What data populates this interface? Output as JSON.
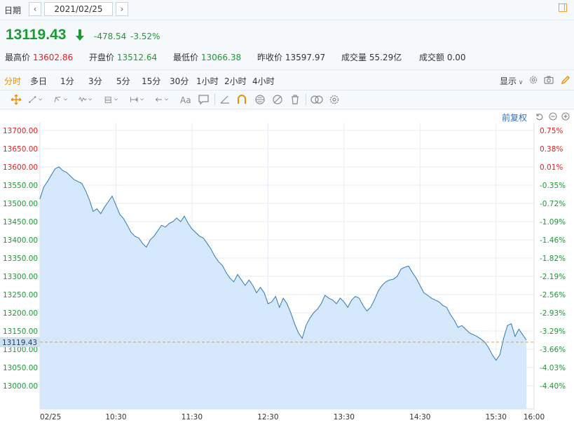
{
  "header": {
    "date_label": "日期",
    "prev_label": "‹",
    "next_label": "›",
    "date_value": "2021/02/25"
  },
  "quote": {
    "last": "13119.43",
    "change": "-478.54",
    "change_pct": "-3.52%",
    "stats": [
      {
        "label": "最高价",
        "value": "13602.86",
        "color": "red"
      },
      {
        "label": "开盘价",
        "value": "13512.64",
        "color": "green"
      },
      {
        "label": "最低价",
        "value": "13066.38",
        "color": "green"
      },
      {
        "label": "昨收价",
        "value": "13597.97",
        "color": "plain"
      },
      {
        "label": "成交量",
        "value": "55.29亿",
        "color": "plain"
      },
      {
        "label": "成交额",
        "value": "0.00",
        "color": "plain"
      }
    ]
  },
  "periods": [
    "分时",
    "多日",
    "1分",
    "3分",
    "5分",
    "15分",
    "30分",
    "1小时",
    "2小时",
    "4小时"
  ],
  "active_period": "分时",
  "display_label": "显示",
  "adjust_label": "前复权",
  "toolbar_icons": [
    "move-icon",
    "line-tool-icon",
    "polyline-tool-icon",
    "wave-tool-icon",
    "fib-tool-icon",
    "range-tool-icon",
    "arrow-tool-icon",
    "text-tool-icon",
    "note-tool-icon",
    "angle-tool-icon",
    "magnet-icon",
    "lock-icon",
    "hide-icon",
    "trash-icon",
    "compare-icon",
    "settings-icon"
  ],
  "colors": {
    "up": "#e02020",
    "down": "#1a9b33",
    "line": "#2f78b6",
    "fill": "#cfe4fb",
    "accent": "#f08c00",
    "current": "#f0a030"
  },
  "chart_data": {
    "type": "area",
    "prev_close": 13597.97,
    "current_price": 13119.43,
    "current_price_label": "13119.43",
    "ylim": [
      12950,
      13700
    ],
    "yticks": [
      {
        "v": 13700,
        "label": "13700.00",
        "pct": "0.75%"
      },
      {
        "v": 13650,
        "label": "13650.00",
        "pct": "0.38%"
      },
      {
        "v": 13600,
        "label": "13600.00",
        "pct": "0.01%"
      },
      {
        "v": 13550,
        "label": "13550.00",
        "pct": "-0.35%"
      },
      {
        "v": 13500,
        "label": "13500.00",
        "pct": "-0.72%"
      },
      {
        "v": 13450,
        "label": "13450.00",
        "pct": "-1.09%"
      },
      {
        "v": 13400,
        "label": "13400.00",
        "pct": "-1.46%"
      },
      {
        "v": 13350,
        "label": "13350.00",
        "pct": "-1.82%"
      },
      {
        "v": 13300,
        "label": "13300.00",
        "pct": "-2.19%"
      },
      {
        "v": 13250,
        "label": "13250.00",
        "pct": "-2.56%"
      },
      {
        "v": 13200,
        "label": "13200.00",
        "pct": "-2.93%"
      },
      {
        "v": 13150,
        "label": "13150.00",
        "pct": "-3.29%"
      },
      {
        "v": 13100,
        "label": "13100.00",
        "pct": "-3.66%"
      },
      {
        "v": 13050,
        "label": "13050.00",
        "pct": "-4.03%"
      },
      {
        "v": 13000,
        "label": "13000.00",
        "pct": "-4.40%"
      }
    ],
    "xticks": [
      {
        "t": "09:30",
        "label": "02/25"
      },
      {
        "t": "10:30",
        "label": "10:30"
      },
      {
        "t": "11:30",
        "label": "11:30"
      },
      {
        "t": "12:30",
        "label": "12:30"
      },
      {
        "t": "13:30",
        "label": "13:30"
      },
      {
        "t": "14:30",
        "label": "14:30"
      },
      {
        "t": "15:30",
        "label": "15:30"
      },
      {
        "t": "16:00",
        "label": "16:00"
      }
    ],
    "xrange": [
      "09:30",
      "16:00"
    ],
    "series": [
      {
        "points": [
          [
            "09:30",
            13512
          ],
          [
            "09:33",
            13545
          ],
          [
            "09:36",
            13560
          ],
          [
            "09:39",
            13578
          ],
          [
            "09:42",
            13595
          ],
          [
            "09:45",
            13600
          ],
          [
            "09:48",
            13590
          ],
          [
            "09:51",
            13585
          ],
          [
            "09:54",
            13575
          ],
          [
            "09:57",
            13565
          ],
          [
            "10:00",
            13560
          ],
          [
            "10:03",
            13555
          ],
          [
            "10:06",
            13535
          ],
          [
            "10:09",
            13510
          ],
          [
            "10:12",
            13478
          ],
          [
            "10:15",
            13485
          ],
          [
            "10:18",
            13472
          ],
          [
            "10:21",
            13490
          ],
          [
            "10:24",
            13505
          ],
          [
            "10:27",
            13520
          ],
          [
            "10:30",
            13495
          ],
          [
            "10:33",
            13470
          ],
          [
            "10:36",
            13458
          ],
          [
            "10:39",
            13440
          ],
          [
            "10:42",
            13420
          ],
          [
            "10:45",
            13410
          ],
          [
            "10:48",
            13405
          ],
          [
            "10:51",
            13390
          ],
          [
            "10:54",
            13380
          ],
          [
            "10:57",
            13400
          ],
          [
            "11:00",
            13410
          ],
          [
            "11:03",
            13425
          ],
          [
            "11:06",
            13440
          ],
          [
            "11:09",
            13435
          ],
          [
            "11:12",
            13445
          ],
          [
            "11:15",
            13450
          ],
          [
            "11:18",
            13460
          ],
          [
            "11:21",
            13450
          ],
          [
            "11:24",
            13465
          ],
          [
            "11:27",
            13445
          ],
          [
            "11:30",
            13430
          ],
          [
            "11:33",
            13420
          ],
          [
            "11:36",
            13410
          ],
          [
            "11:39",
            13405
          ],
          [
            "11:42",
            13390
          ],
          [
            "11:45",
            13375
          ],
          [
            "11:48",
            13355
          ],
          [
            "11:51",
            13340
          ],
          [
            "11:54",
            13330
          ],
          [
            "11:57",
            13310
          ],
          [
            "12:00",
            13295
          ],
          [
            "12:03",
            13285
          ],
          [
            "12:06",
            13305
          ],
          [
            "12:09",
            13290
          ],
          [
            "12:12",
            13275
          ],
          [
            "12:15",
            13290
          ],
          [
            "12:18",
            13275
          ],
          [
            "12:21",
            13255
          ],
          [
            "12:24",
            13270
          ],
          [
            "12:27",
            13255
          ],
          [
            "12:30",
            13225
          ],
          [
            "12:33",
            13230
          ],
          [
            "12:36",
            13245
          ],
          [
            "12:39",
            13215
          ],
          [
            "12:42",
            13240
          ],
          [
            "12:45",
            13225
          ],
          [
            "12:48",
            13200
          ],
          [
            "12:51",
            13170
          ],
          [
            "12:54",
            13145
          ],
          [
            "12:57",
            13130
          ],
          [
            "13:00",
            13165
          ],
          [
            "13:03",
            13185
          ],
          [
            "13:06",
            13200
          ],
          [
            "13:09",
            13210
          ],
          [
            "13:12",
            13225
          ],
          [
            "13:15",
            13248
          ],
          [
            "13:18",
            13240
          ],
          [
            "13:21",
            13235
          ],
          [
            "13:24",
            13225
          ],
          [
            "13:27",
            13240
          ],
          [
            "13:30",
            13230
          ],
          [
            "13:33",
            13215
          ],
          [
            "13:36",
            13235
          ],
          [
            "13:39",
            13245
          ],
          [
            "13:42",
            13240
          ],
          [
            "13:45",
            13220
          ],
          [
            "13:48",
            13205
          ],
          [
            "13:51",
            13215
          ],
          [
            "13:54",
            13235
          ],
          [
            "13:57",
            13260
          ],
          [
            "14:00",
            13275
          ],
          [
            "14:03",
            13285
          ],
          [
            "14:06",
            13290
          ],
          [
            "14:09",
            13292
          ],
          [
            "14:12",
            13300
          ],
          [
            "14:15",
            13320
          ],
          [
            "14:18",
            13325
          ],
          [
            "14:21",
            13328
          ],
          [
            "14:24",
            13310
          ],
          [
            "14:27",
            13295
          ],
          [
            "14:30",
            13275
          ],
          [
            "14:33",
            13255
          ],
          [
            "14:36",
            13248
          ],
          [
            "14:39",
            13240
          ],
          [
            "14:42",
            13235
          ],
          [
            "14:45",
            13230
          ],
          [
            "14:48",
            13220
          ],
          [
            "14:51",
            13215
          ],
          [
            "14:54",
            13195
          ],
          [
            "14:57",
            13180
          ],
          [
            "15:00",
            13160
          ],
          [
            "15:03",
            13165
          ],
          [
            "15:06",
            13155
          ],
          [
            "15:09",
            13145
          ],
          [
            "15:12",
            13140
          ],
          [
            "15:15",
            13135
          ],
          [
            "15:18",
            13128
          ],
          [
            "15:21",
            13120
          ],
          [
            "15:24",
            13105
          ],
          [
            "15:27",
            13085
          ],
          [
            "15:30",
            13070
          ],
          [
            "15:33",
            13085
          ],
          [
            "15:36",
            13130
          ],
          [
            "15:39",
            13165
          ],
          [
            "15:42",
            13170
          ],
          [
            "15:45",
            13135
          ],
          [
            "15:48",
            13155
          ],
          [
            "15:51",
            13140
          ],
          [
            "15:54",
            13125
          ]
        ]
      }
    ]
  }
}
